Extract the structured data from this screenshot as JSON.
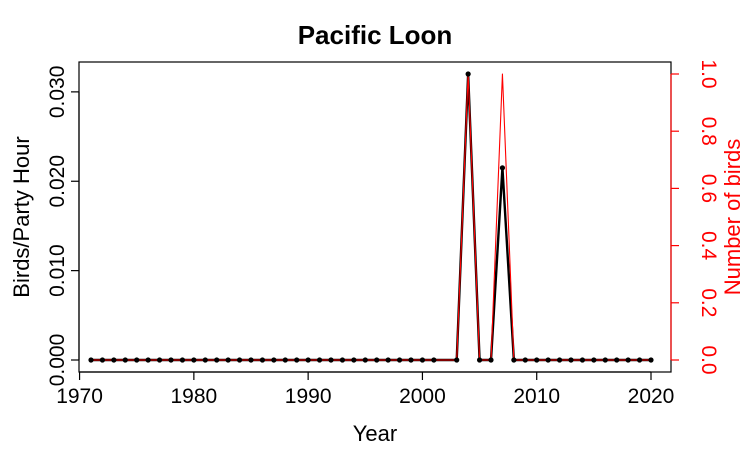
{
  "chart_data": {
    "type": "line",
    "title": "Pacific Loon",
    "xlabel": "Year",
    "ylabel": "Birds/Party Hour",
    "y2label": "Number of birds",
    "xlim": [
      1971,
      2020
    ],
    "ylim": [
      0,
      0.032
    ],
    "y2lim": [
      0,
      1.0
    ],
    "x_ticks": [
      1970,
      1980,
      1990,
      2000,
      2010,
      2020
    ],
    "x_tick_labels": [
      "1970",
      "1980",
      "1990",
      "2000",
      "2010",
      "2020"
    ],
    "y_ticks": [
      0,
      0.01,
      0.02,
      0.03
    ],
    "y_tick_labels": [
      "0.000",
      "0.010",
      "0.020",
      "0.030"
    ],
    "y2_ticks": [
      0,
      0.2,
      0.4,
      0.6,
      0.8,
      1.0
    ],
    "y2_tick_labels": [
      "0.0",
      "0.2",
      "0.4",
      "0.6",
      "0.8",
      "1.0"
    ],
    "grid": false,
    "colors": {
      "primary": "#000000",
      "secondary": "#ff0000"
    },
    "x": [
      1971,
      1972,
      1973,
      1974,
      1975,
      1976,
      1977,
      1978,
      1979,
      1980,
      1981,
      1982,
      1983,
      1984,
      1985,
      1986,
      1987,
      1988,
      1989,
      1990,
      1991,
      1992,
      1993,
      1994,
      1995,
      1996,
      1997,
      1998,
      1999,
      2000,
      2001,
      2003,
      2004,
      2005,
      2006,
      2007,
      2008,
      2009,
      2010,
      2011,
      2012,
      2013,
      2014,
      2015,
      2016,
      2017,
      2018,
      2019,
      2020
    ],
    "series": [
      {
        "axis": "left",
        "values": [
          0,
          0,
          0,
          0,
          0,
          0,
          0,
          0,
          0,
          0,
          0,
          0,
          0,
          0,
          0,
          0,
          0,
          0,
          0,
          0,
          0,
          0,
          0,
          0,
          0,
          0,
          0,
          0,
          0,
          0,
          0,
          0,
          0.032,
          0,
          0,
          0.0215,
          0,
          0,
          0,
          0,
          0,
          0,
          0,
          0,
          0,
          0,
          0,
          0,
          0
        ]
      },
      {
        "axis": "right",
        "values": [
          0,
          0,
          0,
          0,
          0,
          0,
          0,
          0,
          0,
          0,
          0,
          0,
          0,
          0,
          0,
          0,
          0,
          0,
          0,
          0,
          0,
          0,
          0,
          0,
          0,
          0,
          0,
          0,
          0,
          0,
          0,
          0,
          1,
          0,
          0,
          1,
          0,
          0,
          0,
          0,
          0,
          0,
          0,
          0,
          0,
          0,
          0,
          0,
          0
        ]
      }
    ]
  }
}
